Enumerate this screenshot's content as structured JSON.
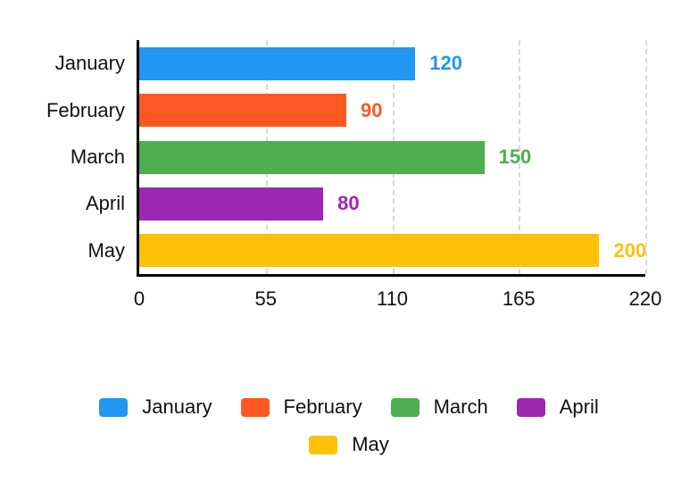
{
  "figure": {
    "background": "#ffffff",
    "text_color": "#111111",
    "axis_color": "#000000",
    "gridline_color": "#d8d8d8"
  },
  "chart_data": {
    "type": "bar",
    "orientation": "horizontal",
    "categories": [
      "January",
      "February",
      "March",
      "April",
      "May"
    ],
    "values": [
      120,
      90,
      150,
      80,
      200
    ],
    "colors": [
      "#2196F3",
      "#FF5722",
      "#4CAF50",
      "#9C27B0",
      "#FFC107"
    ],
    "title": "",
    "xlabel": "",
    "ylabel": "",
    "x_ticks": [
      0,
      55,
      110,
      165,
      220
    ],
    "xlim": [
      0,
      220
    ],
    "grid": "vertical-dashed",
    "value_labels_shown": true,
    "legend": {
      "position": "bottom",
      "entries": [
        {
          "label": "January",
          "color": "#2196F3"
        },
        {
          "label": "February",
          "color": "#FF5722"
        },
        {
          "label": "March",
          "color": "#4CAF50"
        },
        {
          "label": "April",
          "color": "#9C27B0"
        },
        {
          "label": "May",
          "color": "#FFC107"
        }
      ]
    }
  }
}
